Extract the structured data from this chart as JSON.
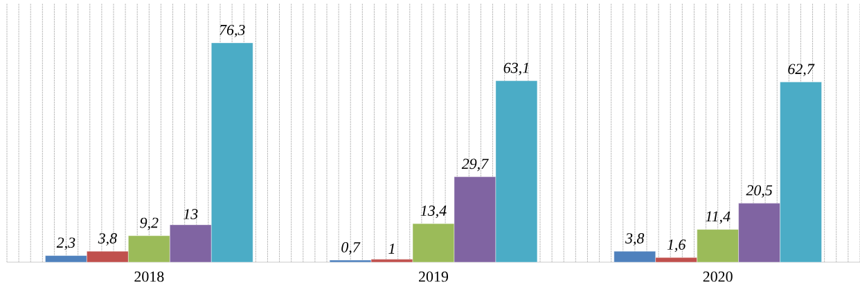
{
  "chart_data": {
    "type": "bar",
    "categories": [
      "2018",
      "2019",
      "2020"
    ],
    "series": [
      {
        "color": "#4f81bd",
        "values": [
          2.3,
          0.7,
          3.8
        ],
        "value_labels": [
          "2,3",
          "0,7",
          "3,8"
        ]
      },
      {
        "color": "#c0504d",
        "values": [
          3.8,
          1,
          1.6
        ],
        "value_labels": [
          "3,8",
          "1",
          "1,6"
        ]
      },
      {
        "color": "#9bbb59",
        "values": [
          9.2,
          13.4,
          11.4
        ],
        "value_labels": [
          "9,2",
          "13,4",
          "11,4"
        ]
      },
      {
        "color": "#8064a2",
        "values": [
          13,
          29.7,
          20.5
        ],
        "value_labels": [
          "13",
          "29,7",
          "20,5"
        ]
      },
      {
        "color": "#4bacc6",
        "values": [
          76.3,
          63.1,
          62.7
        ],
        "value_labels": [
          "76,3",
          "63,1",
          "62,7"
        ]
      }
    ],
    "ylim": [
      0,
      90
    ],
    "grid": true,
    "tick_labels": "x"
  }
}
